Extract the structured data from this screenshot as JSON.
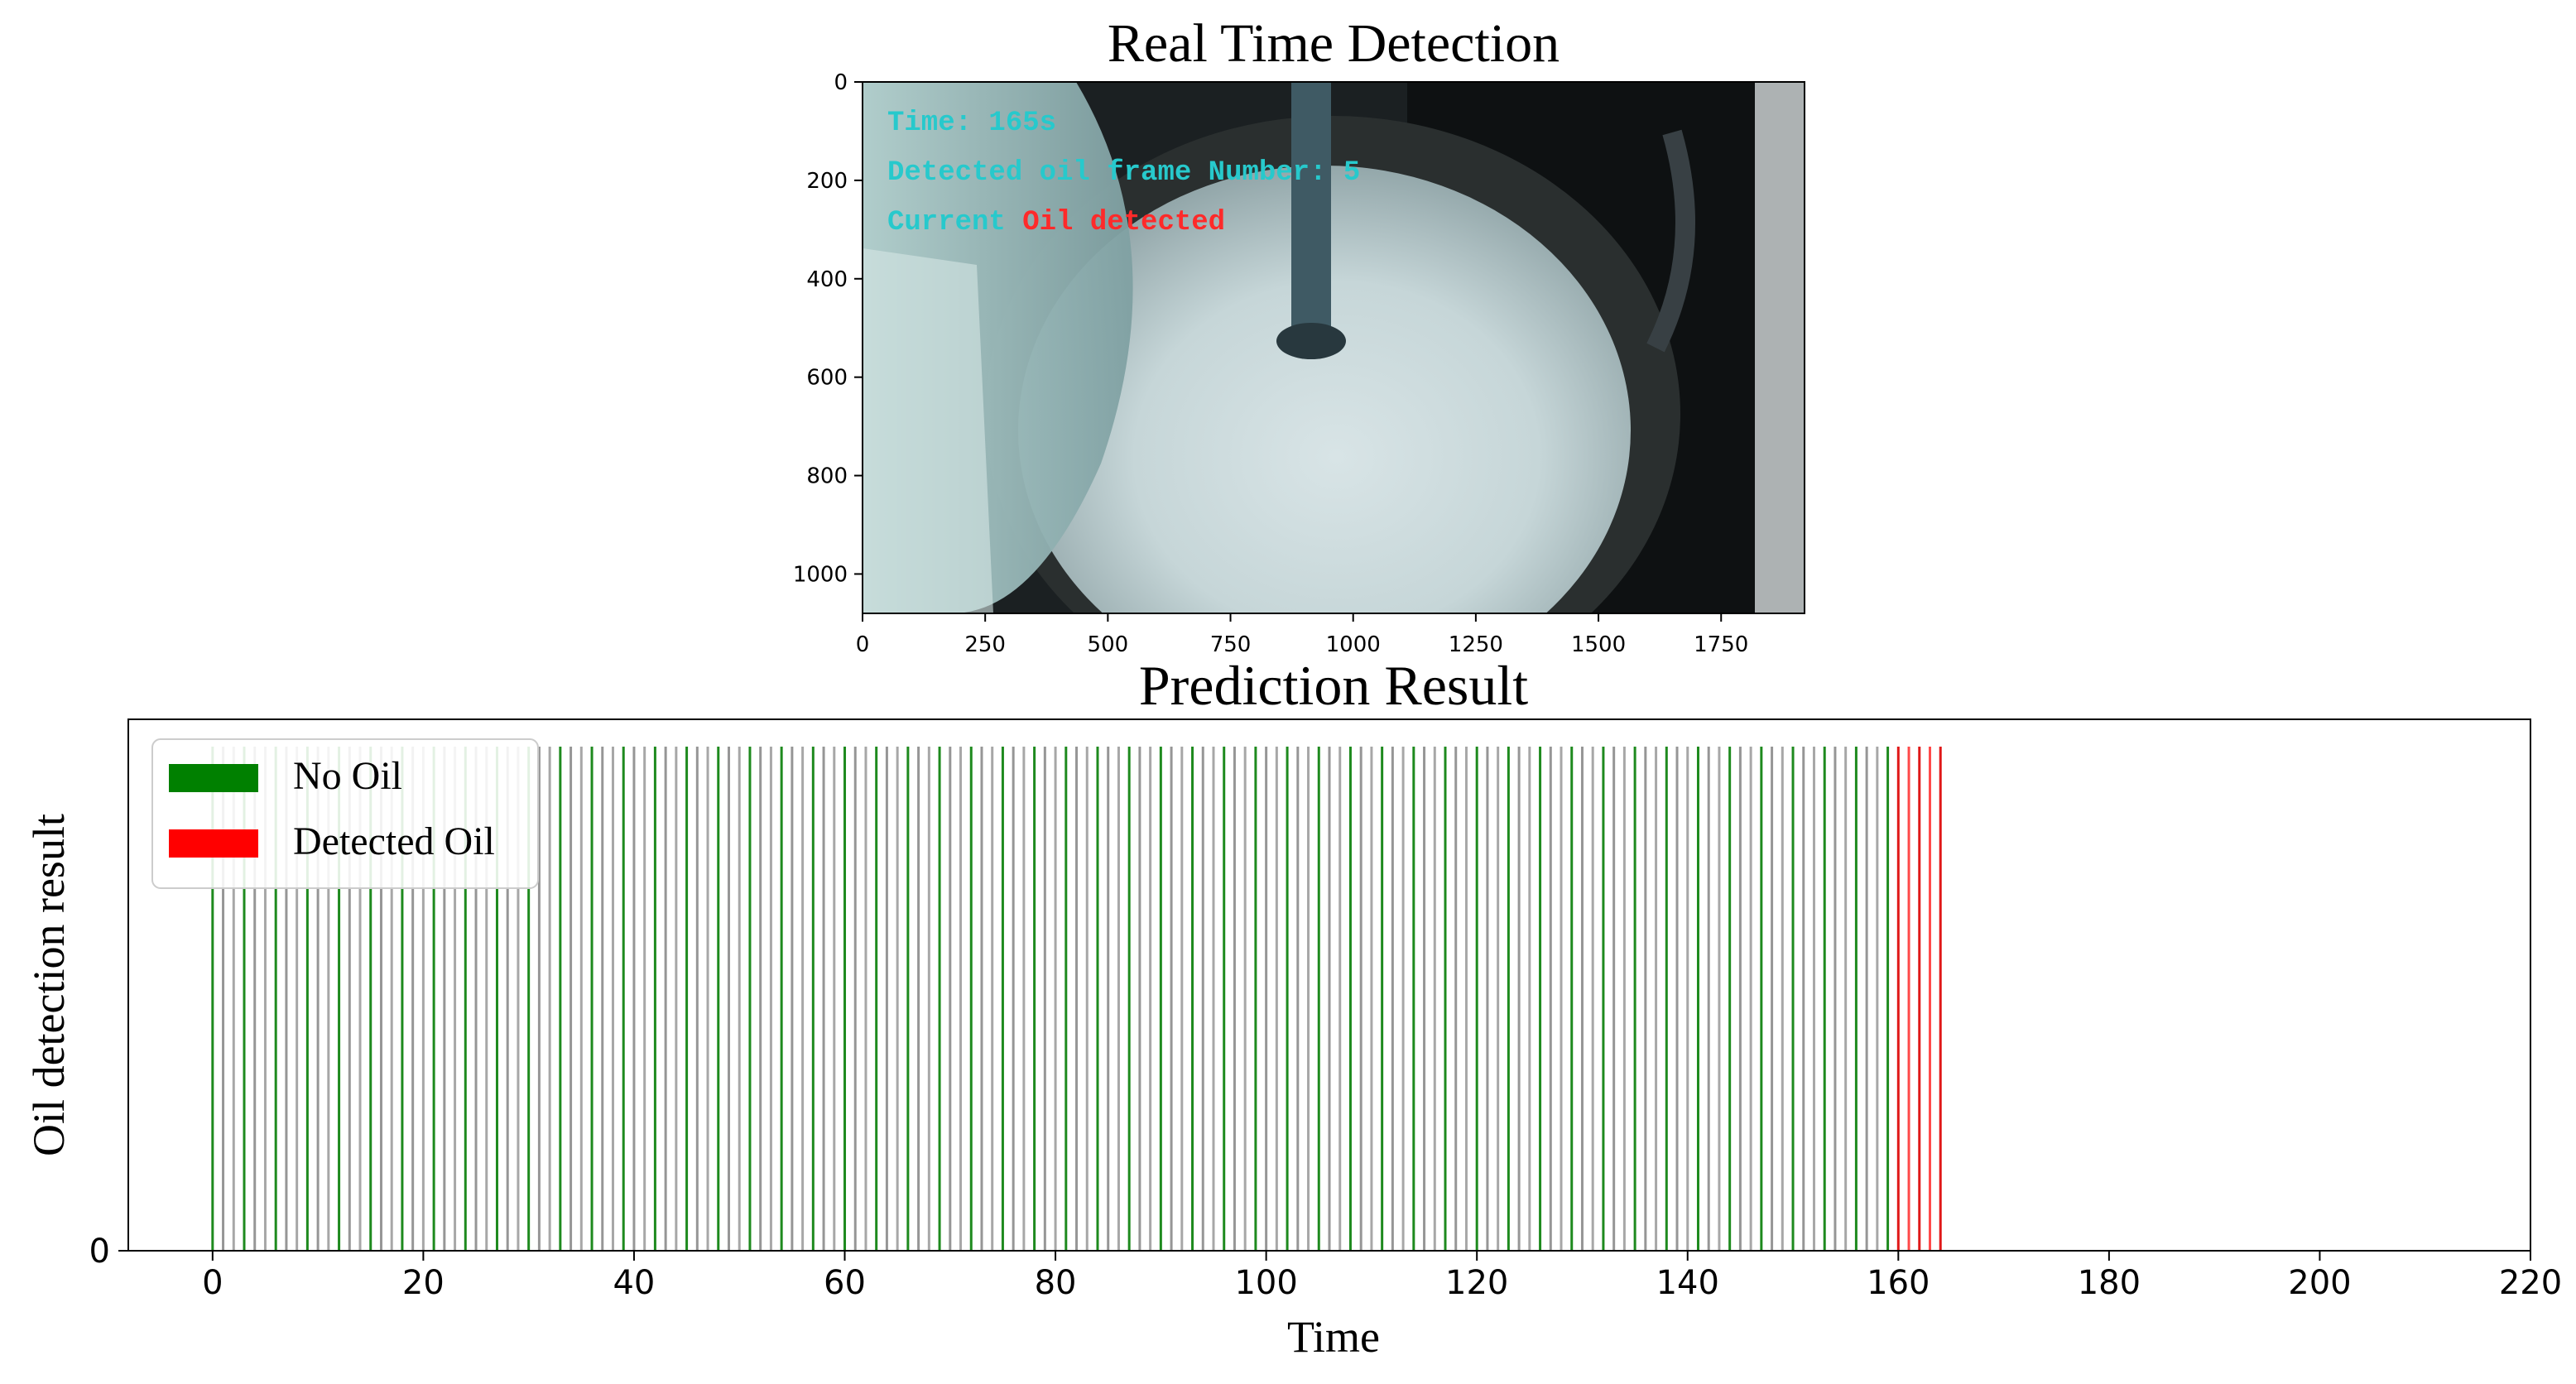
{
  "top_panel": {
    "title": "Real Time Detection",
    "x_ticks": [
      "0",
      "250",
      "500",
      "750",
      "1000",
      "1250",
      "1500",
      "1750"
    ],
    "y_ticks": [
      "0",
      "200",
      "400",
      "600",
      "800",
      "1000"
    ],
    "overlay": {
      "time_line": "Time:  165s",
      "count_line": "Detected oil frame Number:  5",
      "status_prefix": "Current ",
      "status_value": "Oil detected",
      "text_color": "#27c9cc",
      "alert_color": "#ff2a2a"
    }
  },
  "chart_data": {
    "type": "bar",
    "title": "Prediction Result",
    "xlabel": "Time",
    "ylabel": "Oil detection result",
    "xlim": [
      -8,
      220
    ],
    "x_ticks": [
      0,
      20,
      40,
      60,
      80,
      100,
      120,
      140,
      160,
      180,
      200,
      220
    ],
    "y_ticks": [
      0
    ],
    "legend": {
      "position": "top-left",
      "entries": [
        {
          "label": "No Oil",
          "color": "#008000"
        },
        {
          "label": "Detected Oil",
          "color": "#ff0000"
        }
      ]
    },
    "series": [
      {
        "name": "No Oil",
        "color": "#008000",
        "times": [
          0,
          1,
          2,
          3,
          4,
          5,
          6,
          7,
          8,
          9,
          10,
          11,
          12,
          13,
          14,
          15,
          16,
          17,
          18,
          19,
          20,
          21,
          22,
          23,
          24,
          25,
          26,
          27,
          28,
          29,
          30,
          31,
          32,
          33,
          34,
          35,
          36,
          37,
          38,
          39,
          40,
          41,
          42,
          43,
          44,
          45,
          46,
          47,
          48,
          49,
          50,
          51,
          52,
          53,
          54,
          55,
          56,
          57,
          58,
          59,
          60,
          61,
          62,
          63,
          64,
          65,
          66,
          67,
          68,
          69,
          70,
          71,
          72,
          73,
          74,
          75,
          76,
          77,
          78,
          79,
          80,
          81,
          82,
          83,
          84,
          85,
          86,
          87,
          88,
          89,
          90,
          91,
          92,
          93,
          94,
          95,
          96,
          97,
          98,
          99,
          100,
          101,
          102,
          103,
          104,
          105,
          106,
          107,
          108,
          109,
          110,
          111,
          112,
          113,
          114,
          115,
          116,
          117,
          118,
          119,
          120,
          121,
          122,
          123,
          124,
          125,
          126,
          127,
          128,
          129,
          130,
          131,
          132,
          133,
          134,
          135,
          136,
          137,
          138,
          139,
          140,
          141,
          142,
          143,
          144,
          145,
          146,
          147,
          148,
          149,
          150,
          151,
          152,
          153,
          154,
          155,
          156,
          157,
          158,
          159
        ]
      },
      {
        "name": "Detected Oil",
        "color": "#ff0000",
        "times": [
          160,
          161,
          162,
          163,
          164
        ]
      }
    ]
  }
}
